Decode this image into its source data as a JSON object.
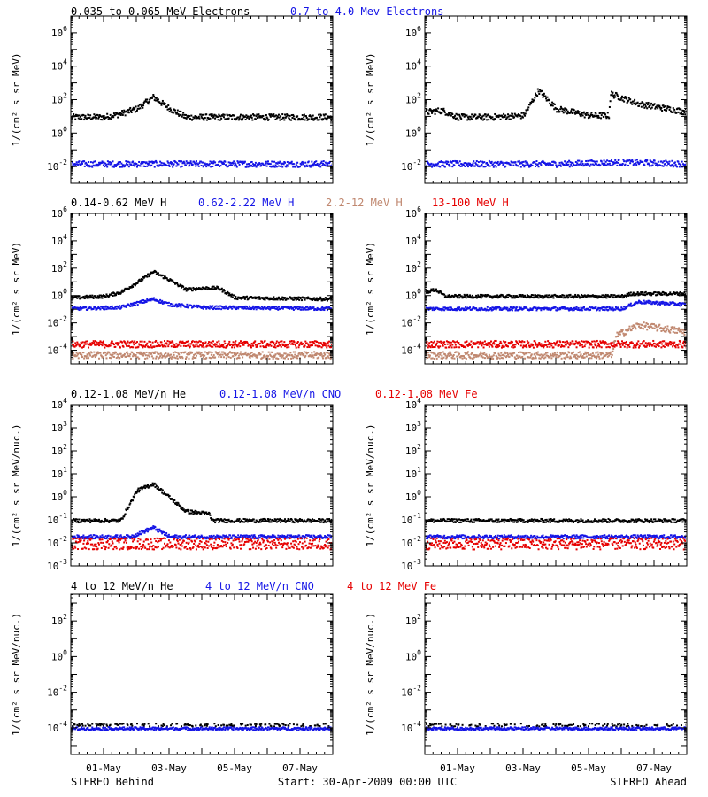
{
  "colors": {
    "black": "#000000",
    "blue": "#1515e6",
    "red": "#e60000",
    "tan": "#c08870"
  },
  "x_ticks": [
    "01-May",
    "03-May",
    "05-May",
    "07-May"
  ],
  "footer": {
    "left": "STEREO Behind",
    "center": "Start: 30-Apr-2009 00:00 UTC",
    "right": "STEREO Ahead"
  },
  "rows": [
    {
      "legend": [
        {
          "text": "0.035 to 0.065 MeV Electrons",
          "color": "black"
        },
        {
          "text": "0.7 to 4.0 Mev Electrons",
          "color": "blue"
        }
      ],
      "ylabel": "1/(cm² s sr MeV)",
      "y_ticks": [
        {
          "e": "-2",
          "v": -2
        },
        {
          "e": "0",
          "v": 0
        },
        {
          "e": "2",
          "v": 2
        },
        {
          "e": "4",
          "v": 4
        },
        {
          "e": "6",
          "v": 6
        }
      ]
    },
    {
      "legend": [
        {
          "text": "0.14-0.62 MeV H",
          "color": "black"
        },
        {
          "text": "0.62-2.22 MeV H",
          "color": "blue"
        },
        {
          "text": "2.2-12 MeV H",
          "color": "tan"
        },
        {
          "text": "13-100 MeV H",
          "color": "red"
        }
      ],
      "ylabel": "1/(cm² s sr MeV)",
      "y_ticks": [
        {
          "e": "-4",
          "v": -4
        },
        {
          "e": "-2",
          "v": -2
        },
        {
          "e": "0",
          "v": 0
        },
        {
          "e": "2",
          "v": 2
        },
        {
          "e": "4",
          "v": 4
        },
        {
          "e": "6",
          "v": 6
        }
      ]
    },
    {
      "legend": [
        {
          "text": "0.12-1.08 MeV/n He",
          "color": "black"
        },
        {
          "text": "0.12-1.08 MeV/n CNO",
          "color": "blue"
        },
        {
          "text": "0.12-1.08 MeV Fe",
          "color": "red"
        }
      ],
      "ylabel": "1/(cm² s sr MeV/nuc.)",
      "y_ticks": [
        {
          "e": "-3",
          "v": -3
        },
        {
          "e": "-2",
          "v": -2
        },
        {
          "e": "-1",
          "v": -1
        },
        {
          "e": "0",
          "v": 0
        },
        {
          "e": "1",
          "v": 1
        },
        {
          "e": "2",
          "v": 2
        },
        {
          "e": "3",
          "v": 3
        },
        {
          "e": "4",
          "v": 4
        }
      ]
    },
    {
      "legend": [
        {
          "text": "4 to 12 MeV/n He",
          "color": "black"
        },
        {
          "text": "4 to 12 MeV/n CNO",
          "color": "blue"
        },
        {
          "text": "4 to 12 MeV Fe",
          "color": "red"
        }
      ],
      "ylabel": "1/(cm² s sr MeV/nuc.)",
      "y_ticks": [
        {
          "e": "-4",
          "v": -4
        },
        {
          "e": "-2",
          "v": -2
        },
        {
          "e": "0",
          "v": 0
        },
        {
          "e": "2",
          "v": 2
        }
      ]
    }
  ],
  "chart_data": [
    {
      "panel": "electrons-behind",
      "type": "scatter",
      "y_scale": "log",
      "ylim_log10": [
        -3,
        7
      ],
      "xlim_days": [
        0,
        8
      ],
      "series": [
        {
          "name": "0.035 to 0.065 MeV Electrons",
          "color": "black",
          "points": [
            [
              0,
              1.0
            ],
            [
              1,
              1.0
            ],
            [
              1.5,
              1.2
            ],
            [
              2,
              1.5
            ],
            [
              2.5,
              2.2
            ],
            [
              3,
              1.5
            ],
            [
              3.5,
              1.0
            ],
            [
              5,
              1.0
            ],
            [
              8,
              1.0
            ]
          ]
        },
        {
          "name": "0.7 to 4.0 Mev Electrons",
          "color": "blue",
          "points": [
            [
              0,
              -1.8
            ],
            [
              4,
              -1.8
            ],
            [
              8,
              -1.8
            ]
          ]
        }
      ]
    },
    {
      "panel": "electrons-ahead",
      "type": "scatter",
      "y_scale": "log",
      "ylim_log10": [
        -3,
        7
      ],
      "xlim_days": [
        0,
        8
      ],
      "series": [
        {
          "name": "0.035 to 0.065 MeV Electrons",
          "color": "black",
          "points": [
            [
              0,
              1.3
            ],
            [
              0.5,
              1.4
            ],
            [
              1,
              1.0
            ],
            [
              2,
              1.0
            ],
            [
              3,
              1.1
            ],
            [
              3.45,
              2.6
            ],
            [
              4,
              1.5
            ],
            [
              5,
              1.1
            ],
            [
              5.6,
              1.1
            ],
            [
              5.65,
              2.4
            ],
            [
              6.5,
              1.8
            ],
            [
              8,
              1.3
            ]
          ]
        },
        {
          "name": "0.7 to 4.0 Mev Electrons",
          "color": "blue",
          "points": [
            [
              0,
              -1.8
            ],
            [
              4,
              -1.8
            ],
            [
              6,
              -1.7
            ],
            [
              8,
              -1.8
            ]
          ]
        }
      ]
    },
    {
      "panel": "hydrogen-behind",
      "type": "scatter",
      "y_scale": "log",
      "ylim_log10": [
        -5,
        6
      ],
      "xlim_days": [
        0,
        8
      ],
      "series": [
        {
          "name": "0.14-0.62 MeV H",
          "color": "black",
          "points": [
            [
              0,
              -0.1
            ],
            [
              1,
              0
            ],
            [
              1.5,
              0.3
            ],
            [
              2,
              1.0
            ],
            [
              2.5,
              1.8
            ],
            [
              3,
              1.2
            ],
            [
              3.5,
              0.5
            ],
            [
              4,
              0.6
            ],
            [
              4.5,
              0.6
            ],
            [
              5,
              -0.1
            ],
            [
              8,
              -0.2
            ]
          ]
        },
        {
          "name": "0.62-2.22 MeV H",
          "color": "blue",
          "points": [
            [
              0,
              -0.9
            ],
            [
              1.5,
              -0.8
            ],
            [
              2,
              -0.5
            ],
            [
              2.5,
              -0.2
            ],
            [
              3,
              -0.6
            ],
            [
              4,
              -0.8
            ],
            [
              8,
              -0.9
            ]
          ]
        },
        {
          "name": "2.2-12 MeV H",
          "color": "tan",
          "points": [
            [
              0,
              -4.3
            ],
            [
              8,
              -4.3
            ]
          ]
        },
        {
          "name": "13-100 MeV H",
          "color": "red",
          "points": [
            [
              0,
              -3.5
            ],
            [
              8,
              -3.5
            ]
          ]
        }
      ]
    },
    {
      "panel": "hydrogen-ahead",
      "type": "scatter",
      "y_scale": "log",
      "ylim_log10": [
        -5,
        6
      ],
      "xlim_days": [
        0,
        8
      ],
      "series": [
        {
          "name": "0.14-0.62 MeV H",
          "color": "black",
          "points": [
            [
              0,
              0.3
            ],
            [
              0.3,
              0.5
            ],
            [
              0.6,
              0
            ],
            [
              3,
              0
            ],
            [
              6,
              0
            ],
            [
              6.3,
              0.2
            ],
            [
              8,
              0.2
            ]
          ]
        },
        {
          "name": "0.62-2.22 MeV H",
          "color": "blue",
          "points": [
            [
              0,
              -0.9
            ],
            [
              6,
              -0.9
            ],
            [
              6.5,
              -0.4
            ],
            [
              8,
              -0.6
            ]
          ]
        },
        {
          "name": "2.2-12 MeV H",
          "color": "tan",
          "points": [
            [
              0,
              -4.3
            ],
            [
              5.7,
              -4.3
            ],
            [
              5.8,
              -2.9
            ],
            [
              6.5,
              -2.1
            ],
            [
              8,
              -2.6
            ]
          ]
        },
        {
          "name": "13-100 MeV H",
          "color": "red",
          "points": [
            [
              0,
              -3.5
            ],
            [
              8,
              -3.5
            ]
          ]
        }
      ]
    },
    {
      "panel": "heavy-low-behind",
      "type": "scatter",
      "y_scale": "log",
      "ylim_log10": [
        -3,
        4
      ],
      "xlim_days": [
        0,
        8
      ],
      "series": [
        {
          "name": "0.12-1.08 MeV/n He",
          "color": "black",
          "points": [
            [
              0,
              -1.0
            ],
            [
              1.5,
              -1.0
            ],
            [
              2,
              0.3
            ],
            [
              2.5,
              0.6
            ],
            [
              3,
              0
            ],
            [
              3.5,
              -0.6
            ],
            [
              4.2,
              -0.7
            ],
            [
              4.3,
              -1.0
            ],
            [
              8,
              -1.0
            ]
          ]
        },
        {
          "name": "0.12-1.08 MeV/n CNO",
          "color": "blue",
          "points": [
            [
              0,
              -1.7
            ],
            [
              1.8,
              -1.7
            ],
            [
              2.5,
              -1.3
            ],
            [
              3,
              -1.7
            ],
            [
              8,
              -1.7
            ]
          ]
        },
        {
          "name": "0.12-1.08 MeV Fe",
          "color": "red",
          "points": [
            [
              0,
              -2.0
            ],
            [
              8,
              -2.0
            ]
          ]
        }
      ]
    },
    {
      "panel": "heavy-low-ahead",
      "type": "scatter",
      "y_scale": "log",
      "ylim_log10": [
        -3,
        4
      ],
      "xlim_days": [
        0,
        8
      ],
      "series": [
        {
          "name": "0.12-1.08 MeV/n He",
          "color": "black",
          "points": [
            [
              0,
              -1.0
            ],
            [
              8,
              -1.0
            ]
          ]
        },
        {
          "name": "0.12-1.08 MeV/n CNO",
          "color": "blue",
          "points": [
            [
              0,
              -1.7
            ],
            [
              8,
              -1.7
            ]
          ]
        },
        {
          "name": "0.12-1.08 MeV Fe",
          "color": "red",
          "points": [
            [
              0,
              -2.0
            ],
            [
              8,
              -2.0
            ]
          ]
        }
      ]
    },
    {
      "panel": "heavy-high-behind",
      "type": "scatter",
      "y_scale": "log",
      "ylim_log10": [
        -5.5,
        3.5
      ],
      "xlim_days": [
        0,
        8
      ],
      "series": [
        {
          "name": "4 to 12 MeV/n He",
          "color": "black",
          "points": [
            [
              0,
              -3.8
            ],
            [
              8,
              -3.8
            ]
          ]
        },
        {
          "name": "4 to 12 MeV/n CNO",
          "color": "blue",
          "points": [
            [
              0,
              -4.0
            ],
            [
              8,
              -4.0
            ]
          ]
        },
        {
          "name": "4 to 12 MeV Fe",
          "color": "red",
          "points": []
        }
      ]
    },
    {
      "panel": "heavy-high-ahead",
      "type": "scatter",
      "y_scale": "log",
      "ylim_log10": [
        -5.5,
        3.5
      ],
      "xlim_days": [
        0,
        8
      ],
      "series": [
        {
          "name": "4 to 12 MeV/n He",
          "color": "black",
          "points": [
            [
              0,
              -3.8
            ],
            [
              8,
              -3.8
            ]
          ]
        },
        {
          "name": "4 to 12 MeV/n CNO",
          "color": "blue",
          "points": [
            [
              0,
              -4.0
            ],
            [
              8,
              -4.0
            ]
          ]
        },
        {
          "name": "4 to 12 MeV Fe",
          "color": "red",
          "points": []
        }
      ]
    }
  ]
}
